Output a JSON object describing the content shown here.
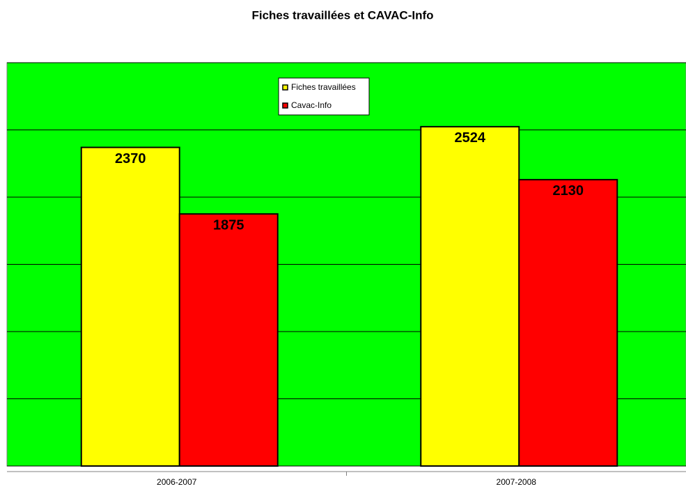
{
  "chart_data": {
    "type": "bar",
    "title": "Fiches travaillées et CAVAC-Info",
    "categories": [
      "2006-2007",
      "2007-2008"
    ],
    "series": [
      {
        "name": "Fiches travaillées",
        "color": "#ffff00",
        "values": [
          2370,
          2524
        ]
      },
      {
        "name": "Cavac-Info",
        "color": "#ff0000",
        "values": [
          1875,
          2130
        ]
      }
    ],
    "ylim": [
      0,
      3000
    ],
    "yticks": [
      0,
      500,
      1000,
      1500,
      2000,
      2500,
      3000
    ],
    "grid": true,
    "background": "#00ff00"
  }
}
